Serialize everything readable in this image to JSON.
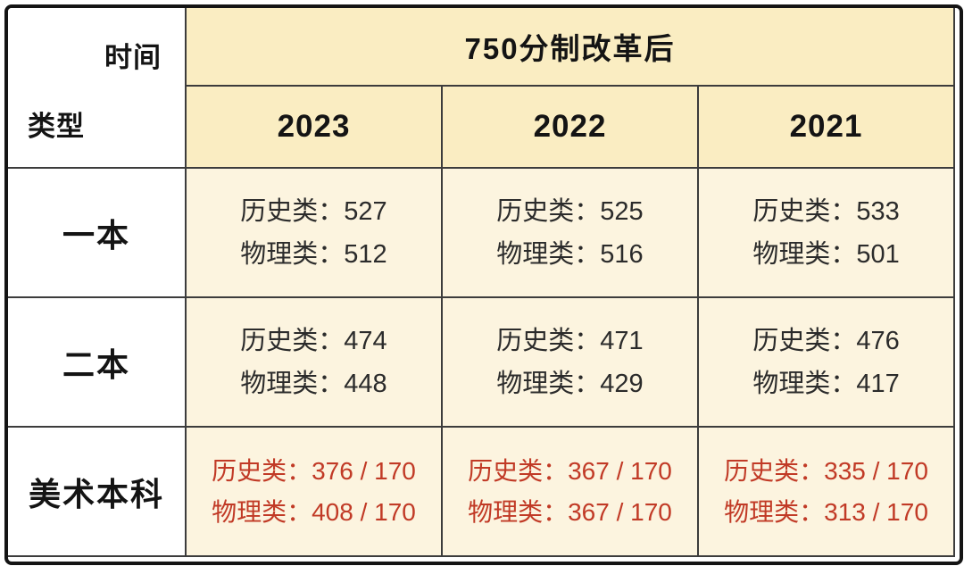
{
  "colors": {
    "header_bg": "#FAEDC2",
    "cell_bg": "#FCF4DF",
    "label_bg": "#FFFFFF",
    "border_inner": "#3C3C3C",
    "border_outer": "#141414",
    "text_primary": "#141414",
    "text_data": "#2B2B2B",
    "accent_red": "#C13A26"
  },
  "corner": {
    "top_label": "时间",
    "bottom_label": "类型"
  },
  "header": {
    "group_label": "750分制改革后",
    "years": [
      "2023",
      "2022",
      "2021"
    ]
  },
  "rows": [
    {
      "label": "一本",
      "cells": [
        [
          "历史类：527",
          "物理类：512"
        ],
        [
          "历史类：525",
          "物理类：516"
        ],
        [
          "历史类：533",
          "物理类：501"
        ]
      ]
    },
    {
      "label": "二本",
      "cells": [
        [
          "历史类：474",
          "物理类：448"
        ],
        [
          "历史类：471",
          "物理类：429"
        ],
        [
          "历史类：476",
          "物理类：417"
        ]
      ]
    },
    {
      "label": "美术本科",
      "cells": [
        [
          "历史类：376 / 170",
          "物理类：408 / 170"
        ],
        [
          "历史类：367 / 170",
          "物理类：367 / 170"
        ],
        [
          "历史类：335 / 170",
          "物理类：313 / 170"
        ]
      ]
    }
  ],
  "chart_data": {
    "type": "table",
    "title": "750分制改革后",
    "corner_axis_labels": {
      "column_axis": "时间",
      "row_axis": "类型"
    },
    "columns": [
      "2023",
      "2022",
      "2021"
    ],
    "row_categories": [
      "一本",
      "二本",
      "美术本科"
    ],
    "values": {
      "一本": {
        "2023": {
          "历史类": 527,
          "物理类": 512
        },
        "2022": {
          "历史类": 525,
          "物理类": 516
        },
        "2021": {
          "历史类": 533,
          "物理类": 501
        }
      },
      "二本": {
        "2023": {
          "历史类": 474,
          "物理类": 448
        },
        "2022": {
          "历史类": 471,
          "物理类": 429
        },
        "2021": {
          "历史类": 476,
          "物理类": 417
        }
      },
      "美术本科": {
        "2023": {
          "历史类": "376/170",
          "物理类": "408/170"
        },
        "2022": {
          "历史类": "367/170",
          "物理类": "367/170"
        },
        "2021": {
          "历史类": "335/170",
          "物理类": "313/170"
        }
      }
    }
  }
}
